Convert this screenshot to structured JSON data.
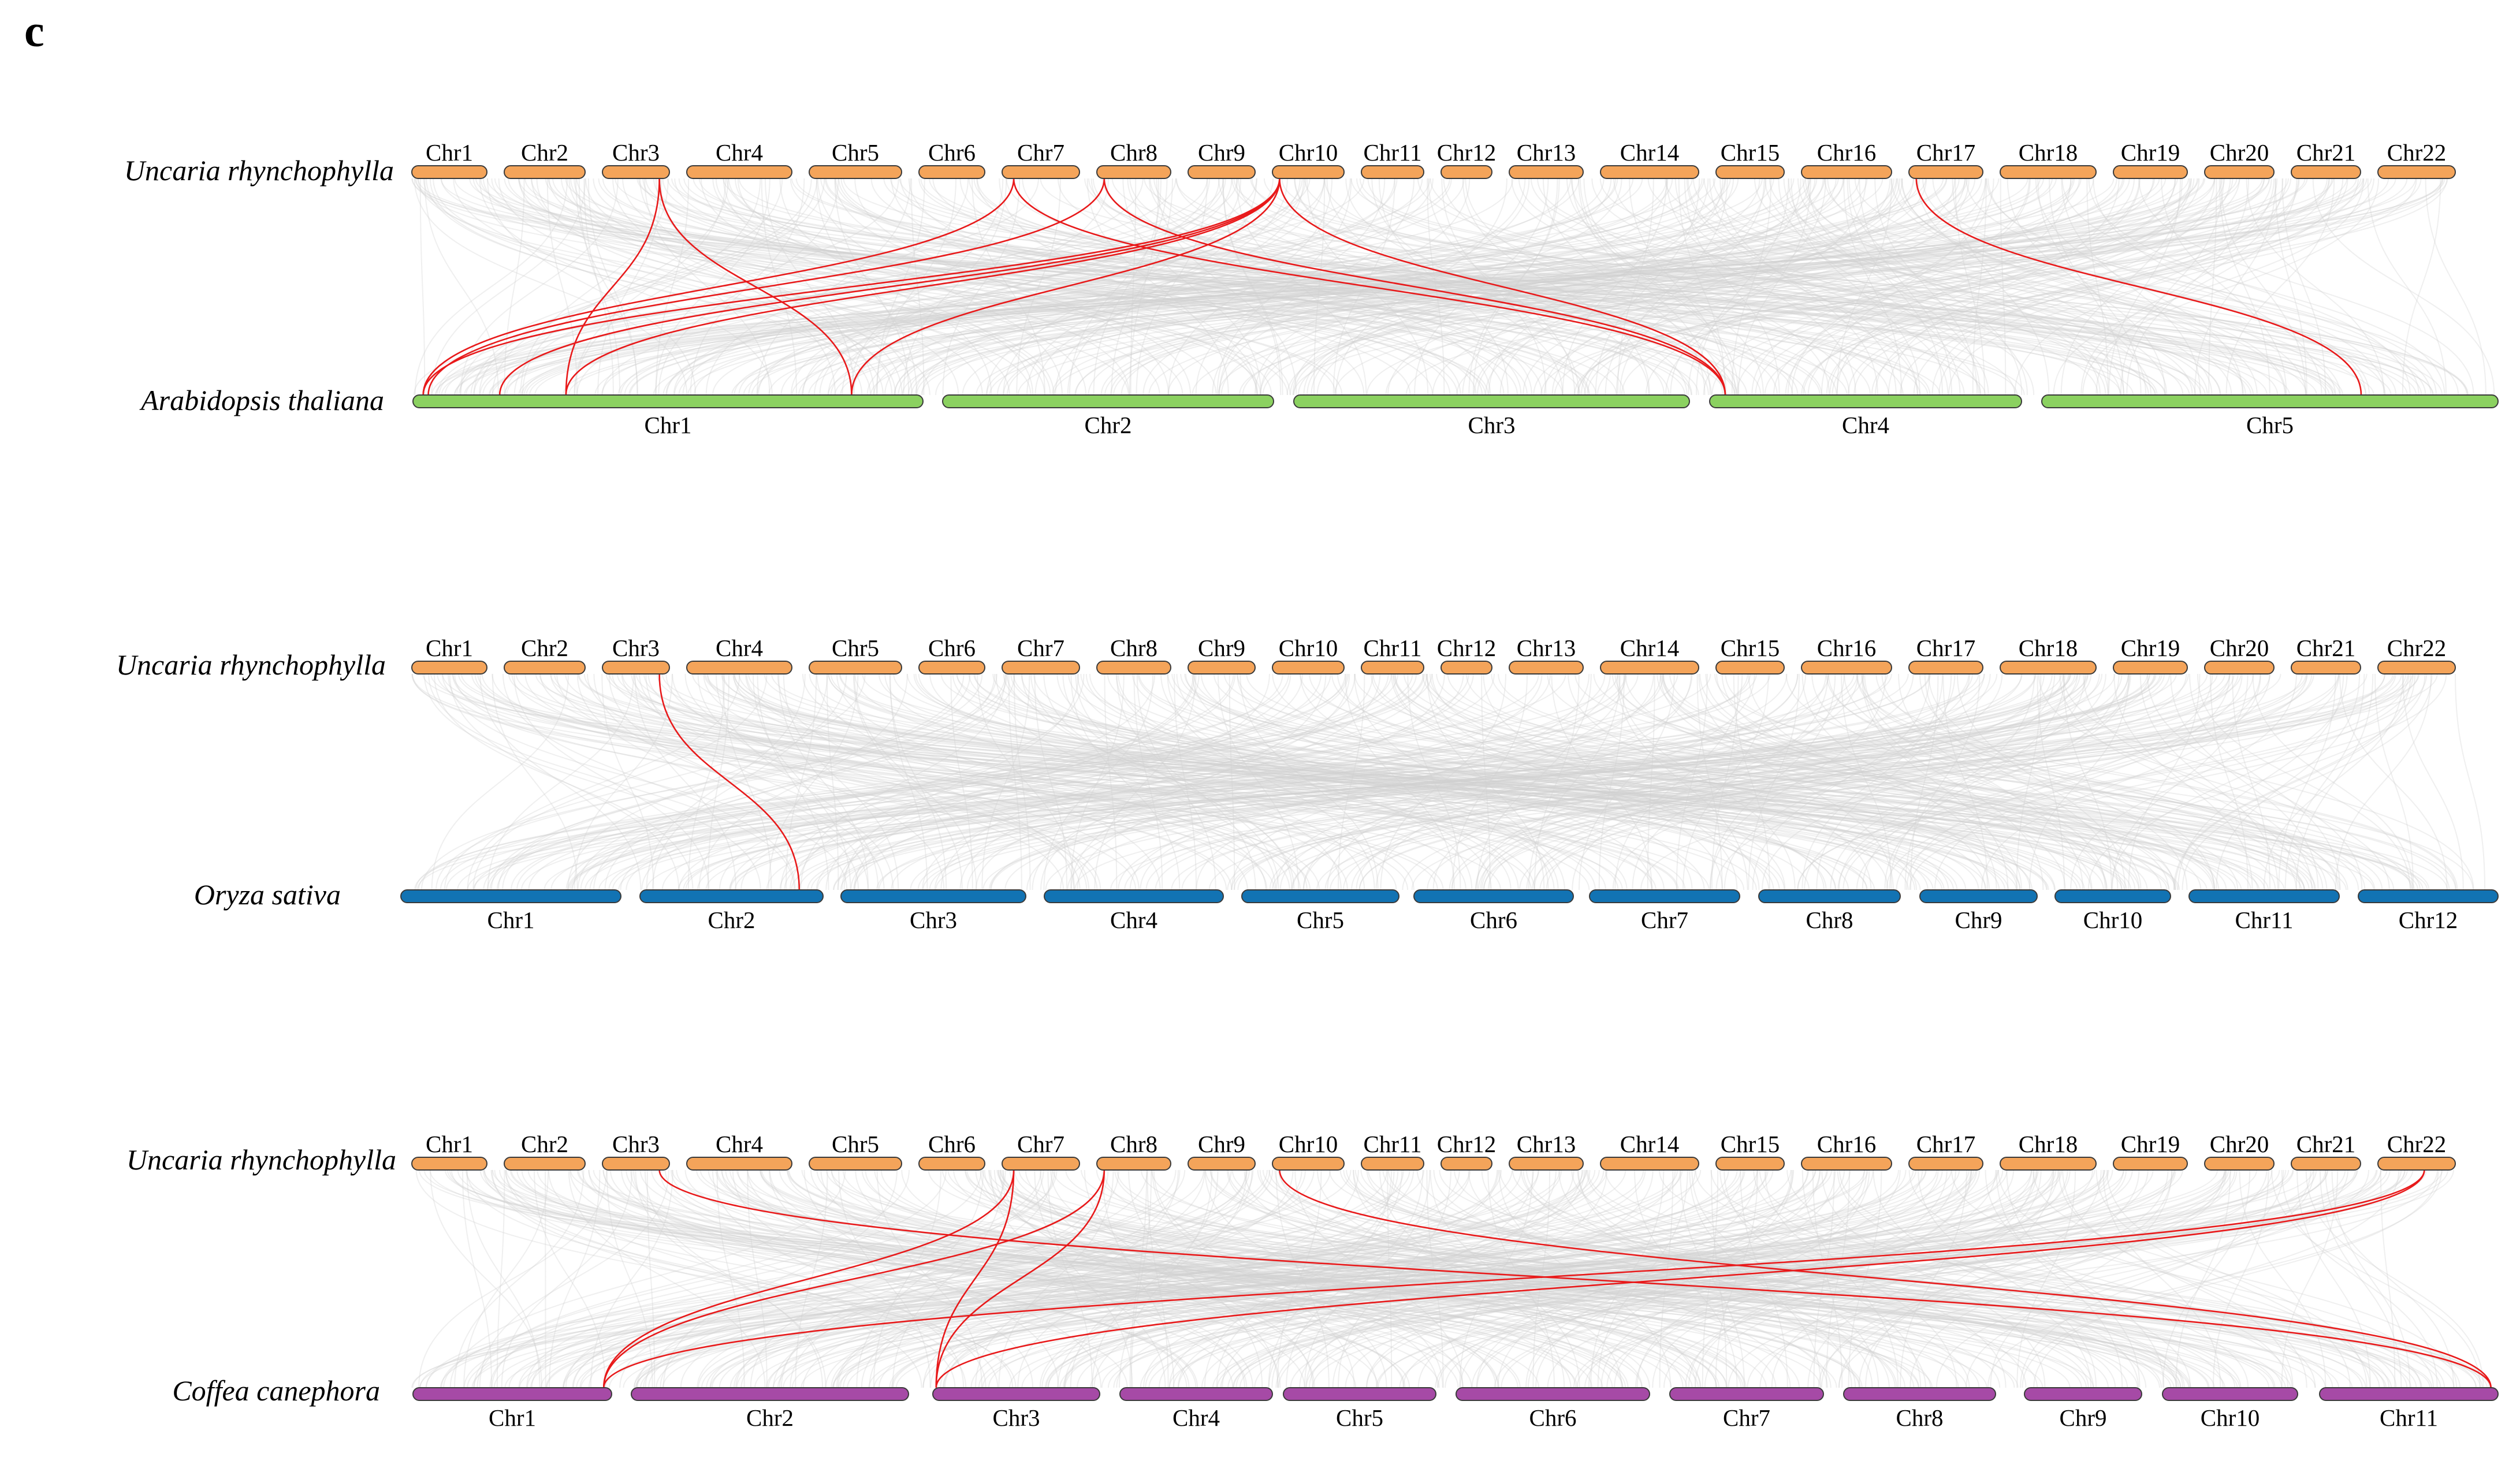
{
  "panel_label": "c",
  "colors": {
    "ur": "#f4a45a",
    "at": "#8bd160",
    "os": "#1273b3",
    "cc": "#a64aa6",
    "highlight": "#e8191a",
    "background": "#d0d0d0"
  },
  "ur_chromosomes": [
    "Chr1",
    "Chr2",
    "Chr3",
    "Chr4",
    "Chr5",
    "Chr6",
    "Chr7",
    "Chr8",
    "Chr9",
    "Chr10",
    "Chr11",
    "Chr12",
    "Chr13",
    "Chr14",
    "Chr15",
    "Chr16",
    "Chr17",
    "Chr18",
    "Chr19",
    "Chr20",
    "Chr21",
    "Chr22"
  ],
  "comparisons": [
    {
      "top_species": "Uncaria rhynchophylla",
      "bottom_species": "Arabidopsis thaliana",
      "bottom_color_key": "at",
      "bottom_chromosomes": [
        "Chr1",
        "Chr2",
        "Chr3",
        "Chr4",
        "Chr5"
      ],
      "highlight_links": [
        {
          "ur": "Chr3",
          "ur_pos": 0.85,
          "target": "Chr1",
          "target_pos": 0.3
        },
        {
          "ur": "Chr3",
          "ur_pos": 0.85,
          "target": "Chr1",
          "target_pos": 0.86
        },
        {
          "ur": "Chr7",
          "ur_pos": 0.15,
          "target": "Chr1",
          "target_pos": 0.02
        },
        {
          "ur": "Chr7",
          "ur_pos": 0.15,
          "target": "Chr4",
          "target_pos": 0.05
        },
        {
          "ur": "Chr8",
          "ur_pos": 0.1,
          "target": "Chr1",
          "target_pos": 0.03
        },
        {
          "ur": "Chr8",
          "ur_pos": 0.1,
          "target": "Chr4",
          "target_pos": 0.05
        },
        {
          "ur": "Chr10",
          "ur_pos": 0.1,
          "target": "Chr1",
          "target_pos": 0.02
        },
        {
          "ur": "Chr10",
          "ur_pos": 0.1,
          "target": "Chr1",
          "target_pos": 0.17
        },
        {
          "ur": "Chr10",
          "ur_pos": 0.1,
          "target": "Chr1",
          "target_pos": 0.3
        },
        {
          "ur": "Chr10",
          "ur_pos": 0.1,
          "target": "Chr1",
          "target_pos": 0.86
        },
        {
          "ur": "Chr10",
          "ur_pos": 0.1,
          "target": "Chr4",
          "target_pos": 0.05
        },
        {
          "ur": "Chr17",
          "ur_pos": 0.1,
          "target": "Chr5",
          "target_pos": 0.7
        }
      ]
    },
    {
      "top_species": "Uncaria rhynchophylla",
      "bottom_species": "Oryza sativa",
      "bottom_color_key": "os",
      "bottom_chromosomes": [
        "Chr1",
        "Chr2",
        "Chr3",
        "Chr4",
        "Chr5",
        "Chr6",
        "Chr7",
        "Chr8",
        "Chr9",
        "Chr10",
        "Chr11",
        "Chr12"
      ],
      "highlight_links": [
        {
          "ur": "Chr3",
          "ur_pos": 0.85,
          "target": "Chr2",
          "target_pos": 0.87
        }
      ]
    },
    {
      "top_species": "Uncaria rhynchophylla",
      "bottom_species": "Coffea canephora",
      "bottom_color_key": "cc",
      "bottom_chromosomes": [
        "Chr1",
        "Chr2",
        "Chr3",
        "Chr4",
        "Chr5",
        "Chr6",
        "Chr7",
        "Chr8",
        "Chr9",
        "Chr10",
        "Chr11"
      ],
      "highlight_links": [
        {
          "ur": "Chr3",
          "ur_pos": 0.85,
          "target": "Chr11",
          "target_pos": 0.96
        },
        {
          "ur": "Chr7",
          "ur_pos": 0.15,
          "target": "Chr1",
          "target_pos": 0.96
        },
        {
          "ur": "Chr7",
          "ur_pos": 0.15,
          "target": "Chr3",
          "target_pos": 0.02
        },
        {
          "ur": "Chr8",
          "ur_pos": 0.1,
          "target": "Chr1",
          "target_pos": 0.96
        },
        {
          "ur": "Chr8",
          "ur_pos": 0.1,
          "target": "Chr3",
          "target_pos": 0.02
        },
        {
          "ur": "Chr10",
          "ur_pos": 0.1,
          "target": "Chr11",
          "target_pos": 0.96
        },
        {
          "ur": "Chr22",
          "ur_pos": 0.6,
          "target": "Chr1",
          "target_pos": 0.96
        },
        {
          "ur": "Chr22",
          "ur_pos": 0.6,
          "target": "Chr3",
          "target_pos": 0.02
        }
      ]
    }
  ]
}
